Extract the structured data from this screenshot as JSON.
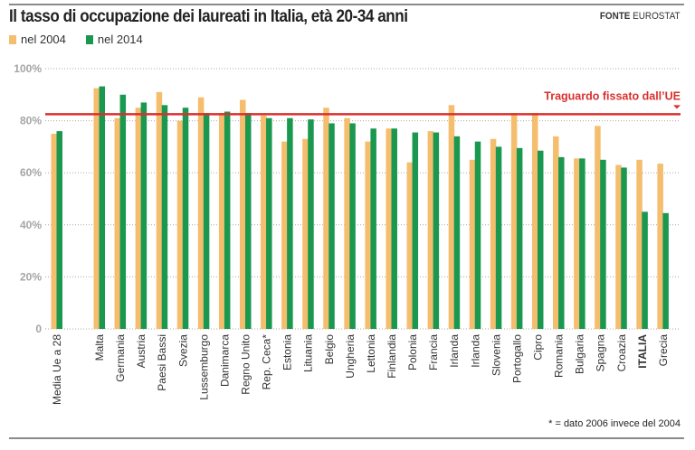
{
  "header": {
    "title": "Il tasso di occupazione dei laureati in Italia, età 20-34 anni",
    "source_label": "FONTE",
    "source_value": "EUROSTAT"
  },
  "footnote": "* = dato 2006 invece del 2004",
  "chart_data": {
    "type": "bar",
    "title": "Il tasso di occupazione dei laureati in Italia, età 20-34 anni",
    "categories": [
      "Media Ue a 28",
      "Malta",
      "Germania",
      "Austria",
      "Paesi Bassi",
      "Svezia",
      "Lussemburgo",
      "Danimarca",
      "Regno Unito",
      "Rep. Ceca*",
      "Estonia",
      "Lituania",
      "Belgio",
      "Ungheria",
      "Lettonia",
      "Finlandia",
      "Polonia",
      "Francia",
      "Irlanda",
      "Irlanda",
      "Slovenia",
      "Portogallo",
      "Cipro",
      "Romania",
      "Bulgaria",
      "Spagna",
      "Croazia",
      "ITALIA",
      "Grecia"
    ],
    "series": [
      {
        "name": "nel 2004",
        "color": "#f5bd6e",
        "values": [
          75,
          92.5,
          81,
          85,
          91,
          80,
          89,
          83,
          88,
          82,
          72,
          73,
          85,
          81,
          72,
          77,
          64,
          76,
          86,
          65,
          73,
          83,
          83,
          74,
          65.5,
          78,
          63,
          65,
          63.5
        ]
      },
      {
        "name": "nel 2014",
        "color": "#1a9850",
        "values": [
          76,
          93.2,
          90,
          87,
          86,
          85,
          83,
          83.5,
          83,
          81,
          81,
          80.5,
          79,
          79,
          77,
          77,
          75.5,
          75.5,
          74,
          72,
          70,
          69.5,
          68.5,
          66,
          65.5,
          65,
          62,
          45,
          44.5
        ]
      }
    ],
    "ylim": [
      0,
      100
    ],
    "yticks": [
      "0",
      "20%",
      "40%",
      "60%",
      "80%",
      "100%"
    ],
    "ytick_values": [
      0,
      20,
      40,
      60,
      80,
      100
    ],
    "grid": true,
    "legend": "top-left",
    "reference_line": {
      "value": 82.5,
      "label": "Traguardo fissato dall’UE",
      "color": "#d7312e"
    }
  }
}
